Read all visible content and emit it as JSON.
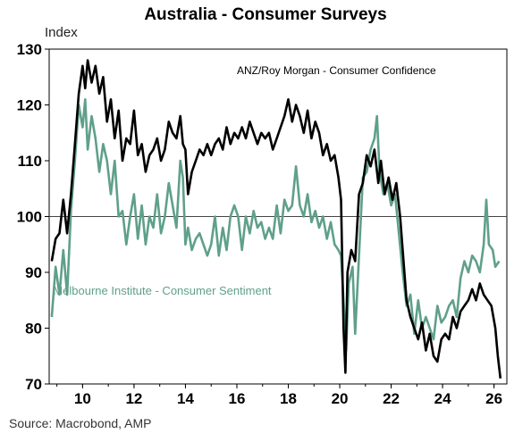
{
  "chart_data": {
    "type": "line",
    "title": "Australia - Consumer Surveys",
    "ylabel": "Index",
    "source": "Source: Macrobond, AMP",
    "xlim": [
      2008.7,
      2026.5
    ],
    "ylim": [
      70,
      130
    ],
    "yticks": [
      70,
      80,
      90,
      100,
      110,
      120,
      130
    ],
    "xticks": [
      10,
      12,
      14,
      16,
      18,
      20,
      22,
      24,
      26
    ],
    "reference_line": 100,
    "grid": false,
    "legend": "none",
    "series": [
      {
        "name": "ANZ/Roy Morgan - Consumer Confidence",
        "color": "#000000",
        "points": [
          [
            2008.8,
            92
          ],
          [
            2008.95,
            96
          ],
          [
            2009.1,
            97
          ],
          [
            2009.25,
            103
          ],
          [
            2009.4,
            97
          ],
          [
            2009.55,
            104
          ],
          [
            2009.7,
            113
          ],
          [
            2009.85,
            122
          ],
          [
            2010.0,
            127
          ],
          [
            2010.1,
            123
          ],
          [
            2010.2,
            128
          ],
          [
            2010.35,
            124
          ],
          [
            2010.5,
            127
          ],
          [
            2010.65,
            122
          ],
          [
            2010.8,
            125
          ],
          [
            2010.95,
            117
          ],
          [
            2011.1,
            121
          ],
          [
            2011.25,
            114
          ],
          [
            2011.4,
            119
          ],
          [
            2011.55,
            110
          ],
          [
            2011.7,
            114
          ],
          [
            2011.85,
            113
          ],
          [
            2012.0,
            119
          ],
          [
            2012.15,
            111
          ],
          [
            2012.3,
            113
          ],
          [
            2012.45,
            108
          ],
          [
            2012.6,
            111
          ],
          [
            2012.75,
            112
          ],
          [
            2012.9,
            114
          ],
          [
            2013.05,
            110
          ],
          [
            2013.2,
            112
          ],
          [
            2013.35,
            117
          ],
          [
            2013.5,
            115
          ],
          [
            2013.65,
            114
          ],
          [
            2013.8,
            118
          ],
          [
            2013.9,
            113
          ],
          [
            2014.0,
            112
          ],
          [
            2014.1,
            104
          ],
          [
            2014.25,
            108
          ],
          [
            2014.4,
            110
          ],
          [
            2014.55,
            112
          ],
          [
            2014.7,
            111
          ],
          [
            2014.85,
            113
          ],
          [
            2015.0,
            111
          ],
          [
            2015.15,
            113
          ],
          [
            2015.3,
            114
          ],
          [
            2015.45,
            112
          ],
          [
            2015.6,
            116
          ],
          [
            2015.75,
            113
          ],
          [
            2015.9,
            115
          ],
          [
            2016.05,
            114
          ],
          [
            2016.2,
            116
          ],
          [
            2016.35,
            114
          ],
          [
            2016.5,
            117
          ],
          [
            2016.65,
            115
          ],
          [
            2016.8,
            113
          ],
          [
            2016.95,
            115
          ],
          [
            2017.1,
            114
          ],
          [
            2017.25,
            115
          ],
          [
            2017.4,
            112
          ],
          [
            2017.55,
            114
          ],
          [
            2017.7,
            116
          ],
          [
            2017.85,
            118
          ],
          [
            2018.0,
            121
          ],
          [
            2018.15,
            117
          ],
          [
            2018.3,
            120
          ],
          [
            2018.45,
            118
          ],
          [
            2018.6,
            115
          ],
          [
            2018.75,
            119
          ],
          [
            2018.9,
            114
          ],
          [
            2019.05,
            117
          ],
          [
            2019.2,
            115
          ],
          [
            2019.35,
            111
          ],
          [
            2019.5,
            113
          ],
          [
            2019.65,
            110
          ],
          [
            2019.8,
            111
          ],
          [
            2019.95,
            107
          ],
          [
            2020.05,
            103
          ],
          [
            2020.15,
            80
          ],
          [
            2020.22,
            72
          ],
          [
            2020.3,
            90
          ],
          [
            2020.45,
            94
          ],
          [
            2020.6,
            92
          ],
          [
            2020.75,
            104
          ],
          [
            2020.9,
            106
          ],
          [
            2021.05,
            111
          ],
          [
            2021.2,
            109
          ],
          [
            2021.35,
            112
          ],
          [
            2021.5,
            106
          ],
          [
            2021.6,
            110
          ],
          [
            2021.75,
            104
          ],
          [
            2021.9,
            107
          ],
          [
            2022.05,
            103
          ],
          [
            2022.2,
            106
          ],
          [
            2022.35,
            100
          ],
          [
            2022.5,
            91
          ],
          [
            2022.6,
            85
          ],
          [
            2022.75,
            82
          ],
          [
            2022.9,
            80
          ],
          [
            2023.05,
            78
          ],
          [
            2023.2,
            81
          ],
          [
            2023.35,
            76
          ],
          [
            2023.5,
            79
          ],
          [
            2023.65,
            75
          ],
          [
            2023.8,
            74
          ],
          [
            2023.95,
            78
          ],
          [
            2024.1,
            79
          ],
          [
            2024.25,
            78
          ],
          [
            2024.4,
            82
          ],
          [
            2024.55,
            80
          ],
          [
            2024.7,
            83
          ],
          [
            2024.85,
            84
          ],
          [
            2025.0,
            85
          ],
          [
            2025.15,
            87
          ],
          [
            2025.3,
            85
          ],
          [
            2025.45,
            88
          ],
          [
            2025.6,
            86
          ],
          [
            2025.75,
            85
          ],
          [
            2025.9,
            84
          ],
          [
            2026.05,
            80
          ],
          [
            2026.15,
            75
          ],
          [
            2026.25,
            71
          ]
        ]
      },
      {
        "name": "Melbourne Institute - Consumer Sentiment",
        "color": "#5fa08a",
        "points": [
          [
            2008.8,
            82
          ],
          [
            2008.95,
            91
          ],
          [
            2009.1,
            86
          ],
          [
            2009.25,
            94
          ],
          [
            2009.4,
            86
          ],
          [
            2009.55,
            101
          ],
          [
            2009.7,
            110
          ],
          [
            2009.85,
            120
          ],
          [
            2010.0,
            116
          ],
          [
            2010.1,
            121
          ],
          [
            2010.2,
            112
          ],
          [
            2010.35,
            118
          ],
          [
            2010.5,
            114
          ],
          [
            2010.65,
            108
          ],
          [
            2010.8,
            113
          ],
          [
            2010.95,
            110
          ],
          [
            2011.1,
            104
          ],
          [
            2011.25,
            110
          ],
          [
            2011.4,
            100
          ],
          [
            2011.55,
            101
          ],
          [
            2011.7,
            95
          ],
          [
            2011.85,
            100
          ],
          [
            2012.0,
            104
          ],
          [
            2012.15,
            96
          ],
          [
            2012.3,
            102
          ],
          [
            2012.45,
            95
          ],
          [
            2012.6,
            100
          ],
          [
            2012.75,
            98
          ],
          [
            2012.9,
            104
          ],
          [
            2013.05,
            97
          ],
          [
            2013.2,
            100
          ],
          [
            2013.35,
            106
          ],
          [
            2013.5,
            102
          ],
          [
            2013.65,
            98
          ],
          [
            2013.8,
            110
          ],
          [
            2013.9,
            107
          ],
          [
            2014.0,
            95
          ],
          [
            2014.1,
            98
          ],
          [
            2014.25,
            94
          ],
          [
            2014.4,
            96
          ],
          [
            2014.55,
            97
          ],
          [
            2014.7,
            95
          ],
          [
            2014.85,
            93
          ],
          [
            2015.0,
            95
          ],
          [
            2015.15,
            100
          ],
          [
            2015.3,
            93
          ],
          [
            2015.45,
            98
          ],
          [
            2015.6,
            94
          ],
          [
            2015.75,
            100
          ],
          [
            2015.9,
            102
          ],
          [
            2016.05,
            100
          ],
          [
            2016.2,
            94
          ],
          [
            2016.35,
            100
          ],
          [
            2016.5,
            97
          ],
          [
            2016.65,
            101
          ],
          [
            2016.8,
            98
          ],
          [
            2016.95,
            99
          ],
          [
            2017.1,
            96
          ],
          [
            2017.25,
            98
          ],
          [
            2017.4,
            96
          ],
          [
            2017.55,
            102
          ],
          [
            2017.7,
            97
          ],
          [
            2017.85,
            103
          ],
          [
            2018.0,
            101
          ],
          [
            2018.15,
            102
          ],
          [
            2018.3,
            109
          ],
          [
            2018.45,
            102
          ],
          [
            2018.6,
            100
          ],
          [
            2018.75,
            104
          ],
          [
            2018.9,
            99
          ],
          [
            2019.05,
            101
          ],
          [
            2019.2,
            98
          ],
          [
            2019.35,
            100
          ],
          [
            2019.5,
            96
          ],
          [
            2019.65,
            99
          ],
          [
            2019.8,
            95
          ],
          [
            2019.95,
            94
          ],
          [
            2020.05,
            93
          ],
          [
            2020.15,
            85
          ],
          [
            2020.25,
            76
          ],
          [
            2020.35,
            88
          ],
          [
            2020.5,
            91
          ],
          [
            2020.6,
            79
          ],
          [
            2020.75,
            93
          ],
          [
            2020.9,
            107
          ],
          [
            2021.05,
            108
          ],
          [
            2021.2,
            112
          ],
          [
            2021.35,
            114
          ],
          [
            2021.45,
            118
          ],
          [
            2021.55,
            108
          ],
          [
            2021.7,
            104
          ],
          [
            2021.85,
            106
          ],
          [
            2022.0,
            102
          ],
          [
            2022.15,
            104
          ],
          [
            2022.3,
            97
          ],
          [
            2022.45,
            90
          ],
          [
            2022.6,
            84
          ],
          [
            2022.75,
            86
          ],
          [
            2022.9,
            79
          ],
          [
            2023.05,
            85
          ],
          [
            2023.2,
            80
          ],
          [
            2023.35,
            82
          ],
          [
            2023.5,
            80
          ],
          [
            2023.65,
            78
          ],
          [
            2023.8,
            84
          ],
          [
            2023.95,
            81
          ],
          [
            2024.1,
            82
          ],
          [
            2024.25,
            84
          ],
          [
            2024.4,
            85
          ],
          [
            2024.55,
            82
          ],
          [
            2024.7,
            89
          ],
          [
            2024.85,
            92
          ],
          [
            2025.0,
            90
          ],
          [
            2025.15,
            93
          ],
          [
            2025.3,
            92
          ],
          [
            2025.45,
            90
          ],
          [
            2025.6,
            95
          ],
          [
            2025.7,
            103
          ],
          [
            2025.8,
            95
          ],
          [
            2025.95,
            94
          ],
          [
            2026.05,
            91
          ],
          [
            2026.2,
            92
          ]
        ]
      }
    ],
    "labels": [
      {
        "text": "ANZ/Roy Morgan - Consumer Confidence",
        "x": 2016.0,
        "y": 125.5,
        "color": "#000000",
        "size": 12
      },
      {
        "text": "Melbourne Institute - Consumer Sentiment",
        "x": 2008.85,
        "y": 86,
        "color": "#5fa08a",
        "size": 13
      }
    ]
  }
}
